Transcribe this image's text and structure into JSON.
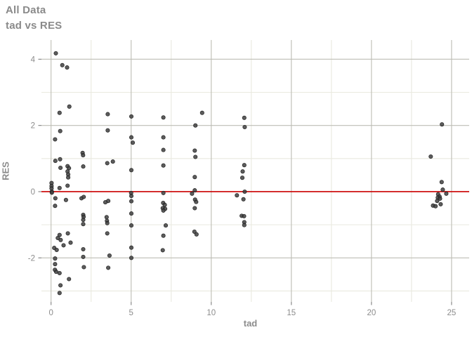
{
  "header": {
    "title": "All Data",
    "subtitle": "tad vs RES"
  },
  "chart_data": {
    "type": "scatter",
    "title": "All Data",
    "subtitle": "tad vs RES",
    "xlabel": "tad",
    "ylabel": "RES",
    "xlim": [
      -0.6,
      26.1
    ],
    "ylim": [
      -3.33,
      4.58
    ],
    "x_major_ticks": [
      0,
      5,
      10,
      15,
      20,
      25
    ],
    "x_minor_ticks": [
      2.5,
      7.5,
      12.5,
      17.5,
      22.5
    ],
    "y_major_ticks": [
      -2,
      0,
      2,
      4
    ],
    "y_minor_ticks": [
      -3,
      -1,
      1,
      3
    ],
    "grid": "on",
    "legend": "none",
    "ref_line_y": 0,
    "colors": {
      "point_fill": "#3f3f3f",
      "point_stroke": "#1a1a1a",
      "ref_line": "#cc0000",
      "grid_major": "#bdbdb4",
      "grid_minor": "#e9e9df",
      "tick_mark": "#808080",
      "tick_label": "#8c8c8c",
      "title_text": "#8a8a8a"
    },
    "points": [
      [
        0.03,
        0.26
      ],
      [
        0.03,
        0.17
      ],
      [
        0.03,
        0.1
      ],
      [
        0.05,
        0.0
      ],
      [
        0.05,
        -0.03
      ],
      [
        0.3,
        4.18
      ],
      [
        0.25,
        1.58
      ],
      [
        0.27,
        0.93
      ],
      [
        0.27,
        -0.2
      ],
      [
        0.25,
        -0.43
      ],
      [
        0.2,
        -1.7
      ],
      [
        0.35,
        -1.76
      ],
      [
        0.25,
        -2.02
      ],
      [
        0.25,
        -2.19
      ],
      [
        0.24,
        -2.36
      ],
      [
        0.32,
        -2.42
      ],
      [
        0.53,
        2.38
      ],
      [
        0.57,
        1.83
      ],
      [
        0.56,
        0.98
      ],
      [
        0.59,
        0.72
      ],
      [
        0.53,
        0.11
      ],
      [
        0.53,
        -1.31
      ],
      [
        0.42,
        -1.4
      ],
      [
        0.6,
        -1.46
      ],
      [
        0.53,
        -2.46
      ],
      [
        0.59,
        -2.83
      ],
      [
        0.53,
        -3.06
      ],
      [
        0.7,
        3.82
      ],
      [
        1.0,
        3.75
      ],
      [
        1.14,
        2.57
      ],
      [
        1.03,
        0.77
      ],
      [
        1.12,
        0.71
      ],
      [
        1.03,
        0.61
      ],
      [
        1.07,
        0.52
      ],
      [
        1.07,
        0.43
      ],
      [
        1.03,
        0.18
      ],
      [
        0.93,
        -0.25
      ],
      [
        1.05,
        -1.26
      ],
      [
        1.22,
        -1.54
      ],
      [
        0.78,
        -1.62
      ],
      [
        1.12,
        -2.64
      ],
      [
        1.97,
        1.17
      ],
      [
        2.0,
        1.1
      ],
      [
        2.01,
        0.76
      ],
      [
        1.9,
        -0.2
      ],
      [
        2.04,
        -0.16
      ],
      [
        2.01,
        -0.7
      ],
      [
        2.03,
        -0.76
      ],
      [
        2.01,
        -0.85
      ],
      [
        2.01,
        -0.98
      ],
      [
        2.01,
        -1.74
      ],
      [
        2.01,
        -1.97
      ],
      [
        2.05,
        -2.28
      ],
      [
        3.54,
        2.34
      ],
      [
        3.54,
        1.85
      ],
      [
        3.86,
        0.91
      ],
      [
        3.51,
        0.86
      ],
      [
        3.57,
        -0.28
      ],
      [
        3.39,
        -0.32
      ],
      [
        3.47,
        -0.77
      ],
      [
        3.49,
        -0.88
      ],
      [
        3.51,
        -0.95
      ],
      [
        3.51,
        -1.26
      ],
      [
        3.65,
        -1.93
      ],
      [
        3.57,
        -2.3
      ],
      [
        5.01,
        2.27
      ],
      [
        5.01,
        1.64
      ],
      [
        5.1,
        1.48
      ],
      [
        5.01,
        0.65
      ],
      [
        5.0,
        -0.04
      ],
      [
        5.01,
        -0.13
      ],
      [
        5.01,
        -0.29
      ],
      [
        5.01,
        -0.66
      ],
      [
        5.01,
        -1.02
      ],
      [
        5.01,
        -1.69
      ],
      [
        5.01,
        -2.0
      ],
      [
        7.01,
        2.24
      ],
      [
        7.01,
        1.64
      ],
      [
        7.01,
        1.26
      ],
      [
        7.01,
        0.79
      ],
      [
        7.01,
        -0.04
      ],
      [
        7.0,
        -0.34
      ],
      [
        7.1,
        -0.4
      ],
      [
        6.97,
        -0.5
      ],
      [
        7.12,
        -0.52
      ],
      [
        7.01,
        -0.57
      ],
      [
        7.16,
        -1.02
      ],
      [
        7.01,
        -1.33
      ],
      [
        6.97,
        -1.77
      ],
      [
        9.43,
        2.38
      ],
      [
        9.01,
        2.0
      ],
      [
        8.97,
        1.24
      ],
      [
        9.01,
        1.05
      ],
      [
        8.97,
        0.44
      ],
      [
        8.97,
        0.04
      ],
      [
        8.8,
        -0.06
      ],
      [
        8.99,
        -0.24
      ],
      [
        9.06,
        -0.31
      ],
      [
        8.97,
        -0.5
      ],
      [
        8.95,
        -1.21
      ],
      [
        9.08,
        -1.29
      ],
      [
        12.06,
        2.23
      ],
      [
        12.09,
        1.95
      ],
      [
        12.06,
        0.8
      ],
      [
        11.96,
        0.61
      ],
      [
        11.94,
        0.42
      ],
      [
        12.09,
        0.0
      ],
      [
        11.6,
        -0.11
      ],
      [
        12.01,
        -0.23
      ],
      [
        11.9,
        -0.73
      ],
      [
        12.05,
        -0.74
      ],
      [
        12.06,
        -0.92
      ],
      [
        12.06,
        -1.01
      ],
      [
        24.4,
        2.03
      ],
      [
        23.7,
        1.06
      ],
      [
        24.38,
        0.29
      ],
      [
        24.45,
        0.06
      ],
      [
        24.67,
        -0.06
      ],
      [
        24.16,
        -0.08
      ],
      [
        24.25,
        -0.15
      ],
      [
        24.14,
        -0.18
      ],
      [
        24.28,
        -0.21
      ],
      [
        24.1,
        -0.28
      ],
      [
        24.32,
        -0.38
      ],
      [
        23.84,
        -0.42
      ],
      [
        24.0,
        -0.44
      ]
    ]
  }
}
